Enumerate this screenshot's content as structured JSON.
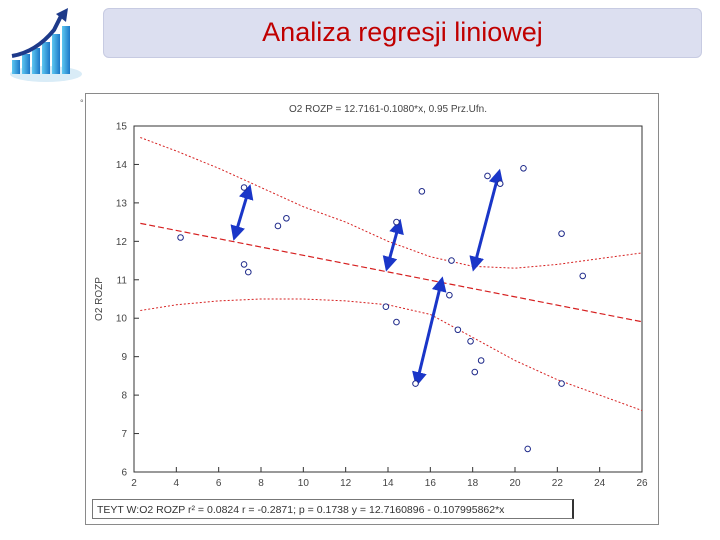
{
  "slide": {
    "title": "Analiza regresji liniowej",
    "footer_text": "TEYT W:O2 ROZP   r² = 0.0824   r = -0.2871; p = 0.1738   y = 12.7160896 - 0.107995862*x"
  },
  "chart_data": {
    "type": "scatter",
    "title": "O2 ROZP = 12.7161-0.1080*x, 0.95 Prz.Ufn.",
    "xlabel": "",
    "ylabel": "O2 ROZP",
    "xlim": [
      2,
      26
    ],
    "ylim": [
      6,
      15
    ],
    "xticks": [
      2,
      4,
      6,
      8,
      10,
      12,
      14,
      16,
      18,
      20,
      22,
      24,
      26
    ],
    "yticks": [
      6,
      7,
      8,
      9,
      10,
      11,
      12,
      13,
      14,
      15
    ],
    "grid": false,
    "points": [
      {
        "x": 4.2,
        "y": 12.1
      },
      {
        "x": 7.2,
        "y": 13.4
      },
      {
        "x": 7.2,
        "y": 11.4
      },
      {
        "x": 7.4,
        "y": 11.2
      },
      {
        "x": 8.8,
        "y": 12.4
      },
      {
        "x": 9.2,
        "y": 12.6
      },
      {
        "x": 13.9,
        "y": 10.3
      },
      {
        "x": 14.4,
        "y": 12.5
      },
      {
        "x": 14.4,
        "y": 9.9
      },
      {
        "x": 15.3,
        "y": 8.3
      },
      {
        "x": 15.6,
        "y": 13.3
      },
      {
        "x": 16.9,
        "y": 10.6
      },
      {
        "x": 17.0,
        "y": 11.5
      },
      {
        "x": 17.3,
        "y": 9.7
      },
      {
        "x": 17.9,
        "y": 9.4
      },
      {
        "x": 18.1,
        "y": 8.6
      },
      {
        "x": 18.4,
        "y": 8.9
      },
      {
        "x": 18.7,
        "y": 13.7
      },
      {
        "x": 19.3,
        "y": 13.5
      },
      {
        "x": 20.4,
        "y": 13.9
      },
      {
        "x": 20.6,
        "y": 6.6
      },
      {
        "x": 22.2,
        "y": 12.2
      },
      {
        "x": 22.2,
        "y": 8.3
      },
      {
        "x": 23.2,
        "y": 11.1
      }
    ],
    "regression": {
      "intercept": 12.7161,
      "slope": -0.108
    },
    "confidence_upper": [
      [
        2.3,
        14.7
      ],
      [
        4,
        14.35
      ],
      [
        6,
        13.9
      ],
      [
        8,
        13.4
      ],
      [
        10,
        12.9
      ],
      [
        12,
        12.5
      ],
      [
        14,
        12.0
      ],
      [
        16,
        11.6
      ],
      [
        18,
        11.35
      ],
      [
        20,
        11.3
      ],
      [
        22,
        11.4
      ],
      [
        24,
        11.55
      ],
      [
        26,
        11.7
      ]
    ],
    "confidence_lower": [
      [
        2.3,
        10.2
      ],
      [
        4,
        10.35
      ],
      [
        6,
        10.45
      ],
      [
        8,
        10.5
      ],
      [
        10,
        10.5
      ],
      [
        12,
        10.45
      ],
      [
        14,
        10.35
      ],
      [
        16,
        10.1
      ],
      [
        18,
        9.5
      ],
      [
        20,
        8.9
      ],
      [
        22,
        8.4
      ],
      [
        24,
        8.0
      ],
      [
        26,
        7.6
      ]
    ],
    "residual_arrows": [
      {
        "x1": 6.8,
        "y1": 12.2,
        "x2": 7.4,
        "y2": 13.3
      },
      {
        "x1": 14.0,
        "y1": 11.4,
        "x2": 14.5,
        "y2": 12.4
      },
      {
        "x1": 18.1,
        "y1": 11.4,
        "x2": 19.2,
        "y2": 13.7
      },
      {
        "x1": 15.4,
        "y1": 8.4,
        "x2": 16.5,
        "y2": 10.9
      }
    ],
    "colors": {
      "regression": "#d62020",
      "points": "#1f2a8a",
      "arrows": "#1a36c8",
      "axis": "#333333"
    }
  }
}
